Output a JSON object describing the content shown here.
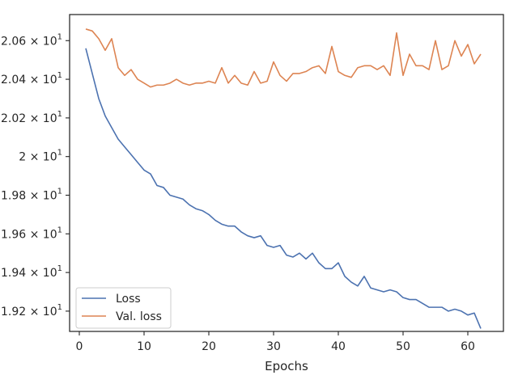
{
  "chart_data": {
    "type": "line",
    "xlabel": "Epochs",
    "ylabel": "",
    "xlim": [
      -1.5,
      65.5
    ],
    "ylim": [
      19.095,
      20.735
    ],
    "xticks": [
      0,
      10,
      20,
      30,
      40,
      50,
      60
    ],
    "yticks": [
      {
        "value": 19.2,
        "mantissa": "1.92",
        "exp": "1"
      },
      {
        "value": 19.4,
        "mantissa": "1.94",
        "exp": "1"
      },
      {
        "value": 19.6,
        "mantissa": "1.96",
        "exp": "1"
      },
      {
        "value": 19.8,
        "mantissa": "1.98",
        "exp": "1"
      },
      {
        "value": 20.0,
        "mantissa": "2",
        "exp": "1"
      },
      {
        "value": 20.2,
        "mantissa": "2.02",
        "exp": "1"
      },
      {
        "value": 20.4,
        "mantissa": "2.04",
        "exp": "1"
      },
      {
        "value": 20.6,
        "mantissa": "2.06",
        "exp": "1"
      }
    ],
    "tick_prefix_times": "×",
    "tick_base": "10",
    "grid": false,
    "legend_position": "lower-left",
    "x": [
      1,
      2,
      3,
      4,
      5,
      6,
      7,
      8,
      9,
      10,
      11,
      12,
      13,
      14,
      15,
      16,
      17,
      18,
      19,
      20,
      21,
      22,
      23,
      24,
      25,
      26,
      27,
      28,
      29,
      30,
      31,
      32,
      33,
      34,
      35,
      36,
      37,
      38,
      39,
      40,
      41,
      42,
      43,
      44,
      45,
      46,
      47,
      48,
      49,
      50,
      51,
      52,
      53,
      54,
      55,
      56,
      57,
      58,
      59,
      60,
      61,
      62
    ],
    "series": [
      {
        "name": "Loss",
        "color": "#4c72b0",
        "values": [
          20.56,
          20.43,
          20.3,
          20.21,
          20.15,
          20.09,
          20.05,
          20.01,
          19.97,
          19.93,
          19.91,
          19.85,
          19.84,
          19.8,
          19.79,
          19.78,
          19.75,
          19.73,
          19.72,
          19.7,
          19.67,
          19.65,
          19.64,
          19.64,
          19.61,
          19.59,
          19.58,
          19.59,
          19.54,
          19.53,
          19.54,
          19.49,
          19.48,
          19.5,
          19.47,
          19.5,
          19.45,
          19.42,
          19.42,
          19.45,
          19.38,
          19.35,
          19.33,
          19.38,
          19.32,
          19.31,
          19.3,
          19.31,
          19.3,
          19.27,
          19.26,
          19.26,
          19.24,
          19.22,
          19.22,
          19.22,
          19.2,
          19.21,
          19.2,
          19.18,
          19.19,
          19.11
        ]
      },
      {
        "name": "Val. loss",
        "color": "#dd8452",
        "values": [
          20.66,
          20.65,
          20.61,
          20.55,
          20.61,
          20.46,
          20.42,
          20.45,
          20.4,
          20.38,
          20.36,
          20.37,
          20.37,
          20.38,
          20.4,
          20.38,
          20.37,
          20.38,
          20.38,
          20.39,
          20.38,
          20.46,
          20.38,
          20.42,
          20.38,
          20.37,
          20.44,
          20.38,
          20.39,
          20.49,
          20.42,
          20.39,
          20.43,
          20.43,
          20.44,
          20.46,
          20.47,
          20.43,
          20.57,
          20.44,
          20.42,
          20.41,
          20.46,
          20.47,
          20.47,
          20.45,
          20.47,
          20.42,
          20.64,
          20.42,
          20.53,
          20.47,
          20.47,
          20.45,
          20.6,
          20.45,
          20.47,
          20.6,
          20.52,
          20.58,
          20.48,
          20.53
        ]
      }
    ]
  }
}
